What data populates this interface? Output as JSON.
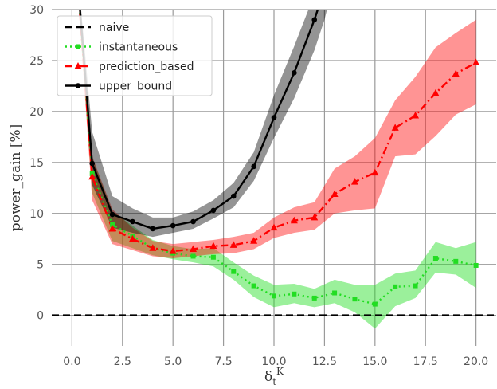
{
  "chart_data": {
    "type": "line",
    "xlabel": "δ_t^K",
    "ylabel": "power_gain [%]",
    "xlim": [
      -1,
      21
    ],
    "ylim": [
      -3,
      30
    ],
    "xticks": [
      0.0,
      2.5,
      5.0,
      7.5,
      10.0,
      12.5,
      15.0,
      17.5,
      20.0
    ],
    "xtick_labels": [
      "0.0",
      "2.5",
      "5.0",
      "7.5",
      "10.0",
      "12.5",
      "15.0",
      "17.5",
      "20.0"
    ],
    "yticks": [
      0,
      5,
      10,
      15,
      20,
      25,
      30
    ],
    "ytick_labels": [
      "0",
      "5",
      "10",
      "15",
      "20",
      "25",
      "30"
    ],
    "grid": true,
    "legend_position": "top-left",
    "series": [
      {
        "name": "naive",
        "color": "#000000",
        "marker": "none",
        "linestyle": "dashed",
        "x": [
          -1,
          21
        ],
        "y": [
          0,
          0
        ]
      },
      {
        "name": "instantaneous",
        "color": "#22dd22",
        "marker": "square",
        "linestyle": "dotted",
        "x": [
          0,
          1,
          2,
          3,
          4,
          5,
          6,
          7,
          8,
          9,
          10,
          11,
          12,
          13,
          14,
          15,
          16,
          17,
          18,
          19,
          20
        ],
        "y": [
          40,
          13.9,
          8.9,
          7.8,
          6.6,
          6.1,
          5.8,
          5.7,
          4.3,
          2.9,
          1.9,
          2.1,
          1.7,
          2.2,
          1.6,
          1.1,
          2.8,
          2.9,
          5.6,
          5.3,
          4.9
        ],
        "lower": [
          40,
          12.0,
          7.3,
          6.6,
          5.9,
          5.5,
          5.2,
          4.8,
          3.5,
          1.8,
          0.8,
          1.2,
          0.8,
          1.2,
          0.3,
          -1.3,
          0.9,
          1.7,
          4.2,
          4.0,
          2.7
        ],
        "upper": [
          40,
          15.5,
          10.2,
          8.8,
          7.4,
          6.8,
          6.5,
          6.6,
          5.2,
          3.9,
          3.0,
          3.1,
          2.6,
          3.5,
          3.0,
          3.0,
          4.1,
          4.4,
          7.2,
          6.6,
          7.2
        ]
      },
      {
        "name": "prediction_based",
        "color": "#ff0000",
        "marker": "triangle",
        "linestyle": "dashdot",
        "x": [
          0,
          1,
          2,
          3,
          4,
          5,
          6,
          7,
          8,
          9,
          10,
          11,
          12,
          13,
          14,
          15,
          16,
          17,
          18,
          19,
          20
        ],
        "y": [
          40,
          13.6,
          8.5,
          7.5,
          6.6,
          6.3,
          6.5,
          6.8,
          6.9,
          7.3,
          8.6,
          9.3,
          9.6,
          11.9,
          13.1,
          14.0,
          18.4,
          19.6,
          21.8,
          23.7,
          24.8
        ],
        "lower": [
          40,
          11.3,
          7.0,
          6.4,
          5.8,
          5.6,
          5.8,
          6.0,
          6.1,
          6.5,
          7.6,
          8.1,
          8.4,
          10.0,
          10.3,
          10.5,
          15.6,
          15.8,
          17.6,
          19.7,
          20.7
        ],
        "upper": [
          40,
          15.6,
          10.4,
          8.6,
          7.3,
          7.0,
          7.2,
          7.4,
          7.7,
          8.1,
          9.6,
          10.6,
          11.1,
          14.4,
          15.6,
          17.4,
          21.1,
          23.4,
          26.3,
          27.7,
          29.0
        ]
      },
      {
        "name": "upper_bound",
        "color": "#000000",
        "marker": "circle",
        "linestyle": "solid",
        "x": [
          0,
          1,
          2,
          3,
          4,
          5,
          6,
          7,
          8,
          9,
          10,
          11,
          12,
          12.5,
          13
        ],
        "y": [
          40,
          14.9,
          9.9,
          9.2,
          8.5,
          8.8,
          9.2,
          10.3,
          11.7,
          14.6,
          19.4,
          23.8,
          29.0,
          32,
          36
        ],
        "lower": [
          40,
          12.8,
          8.6,
          8.1,
          7.7,
          8.1,
          8.5,
          9.5,
          10.6,
          13.2,
          17.4,
          21.3,
          26.0,
          29,
          33
        ],
        "upper": [
          40,
          18.0,
          11.7,
          10.5,
          9.6,
          9.6,
          10.2,
          11.3,
          13.0,
          16.0,
          21.6,
          26.4,
          31.5,
          35,
          39
        ]
      }
    ]
  }
}
